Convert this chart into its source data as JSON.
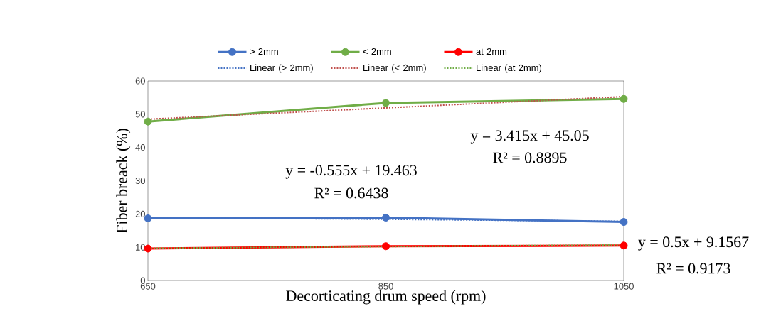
{
  "chart_data": {
    "type": "line",
    "xlabel": "Decorticating drum speed (rpm)",
    "ylabel": "Fiber breack (%)",
    "x": [
      650,
      850,
      1050
    ],
    "xlim": [
      650,
      1050
    ],
    "xticks": [
      650,
      850,
      1050
    ],
    "ylim": [
      0,
      60
    ],
    "yticks": [
      0,
      10,
      20,
      30,
      40,
      50,
      60
    ],
    "grid": false,
    "legend": "top",
    "marker": "circle",
    "line_style": "solid",
    "series": [
      {
        "name": "> 2mm",
        "color": "#4472c4",
        "values": [
          18.7,
          18.9,
          17.6
        ]
      },
      {
        "name": "< 2mm",
        "color": "#70ad47",
        "values": [
          47.8,
          53.4,
          54.6
        ]
      },
      {
        "name": "at 2mm",
        "color": "#ff0000",
        "values": [
          9.6,
          10.3,
          10.5
        ]
      },
      {
        "name": "Linear (> 2mm)",
        "color": "#4472c4",
        "marker": "none",
        "line_style": "dotted",
        "x": [
          650,
          850,
          1050
        ],
        "values": [
          18.9,
          18.4,
          17.8
        ]
      },
      {
        "name": "Linear (< 2mm)",
        "color": "#c0504d",
        "marker": "none",
        "line_style": "dotted",
        "x": [
          650,
          850,
          1050
        ],
        "values": [
          48.5,
          51.9,
          55.3
        ]
      },
      {
        "name": "Linear (at 2mm)",
        "color": "#70ad47",
        "marker": "none",
        "line_style": "dotted",
        "x": [
          650,
          850,
          1050
        ],
        "values": [
          9.7,
          10.2,
          10.7
        ]
      }
    ],
    "annotations": [
      "y = -0.555x + 19.463",
      "R² = 0.6438",
      "y = 3.415x + 45.05",
      "R² = 0.8895",
      "y = 0.5x + 9.1567",
      "R² = 0.9173"
    ]
  }
}
